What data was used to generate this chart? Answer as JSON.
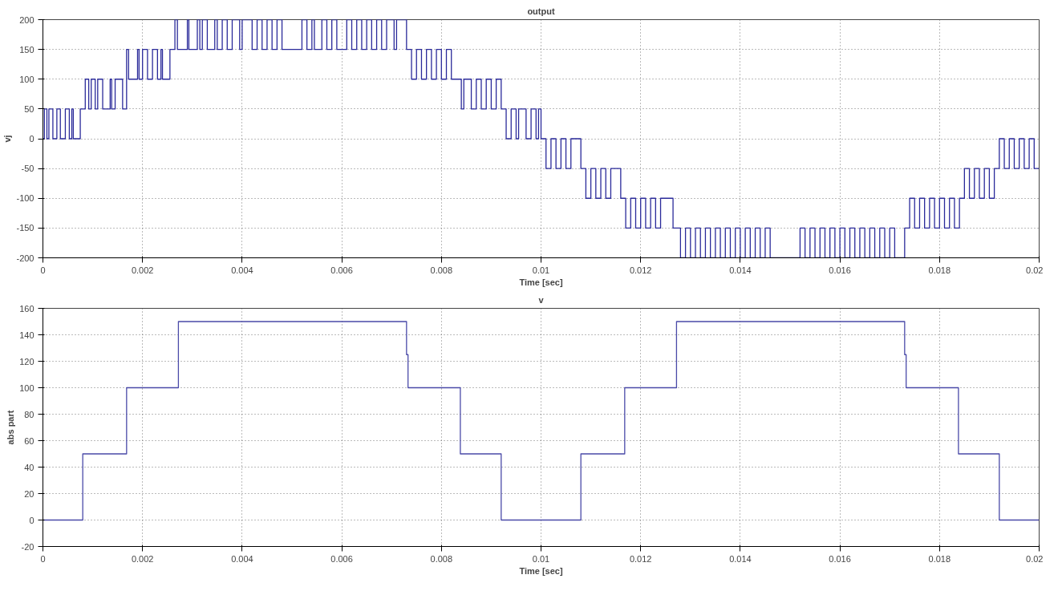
{
  "chart_data": [
    {
      "type": "step",
      "title": "output",
      "xlabel": "Time [sec]",
      "ylabel": "vj",
      "xlim": [
        0,
        0.02
      ],
      "ylim": [
        -200,
        200
      ],
      "xticks": [
        0,
        0.002,
        0.004,
        0.006,
        0.008,
        0.01,
        0.012,
        0.014,
        0.016,
        0.018,
        0.02
      ],
      "yticks": [
        -200,
        -150,
        -100,
        -50,
        0,
        50,
        100,
        150,
        200
      ],
      "grid": true,
      "line_style": "solid",
      "marker": "none",
      "series": [
        {
          "color": "#2a2a9a",
          "x": [
            0,
            3e-05,
            8e-05,
            0.00012,
            0.0002,
            0.00028,
            0.00035,
            0.00045,
            0.00053,
            0.00058,
            0.00061,
            0.00075,
            0.00085,
            0.00092,
            0.00097,
            0.00105,
            0.0011,
            0.0012,
            0.00135,
            0.00138,
            0.00145,
            0.0016,
            0.00168,
            0.00172,
            0.0019,
            0.00193,
            0.002,
            0.0021,
            0.0022,
            0.0023,
            0.00237,
            0.0024,
            0.00255,
            0.00265,
            0.0027,
            0.0029,
            0.00293,
            0.0031,
            0.00315,
            0.0032,
            0.0033,
            0.00345,
            0.0035,
            0.0036,
            0.0037,
            0.0038,
            0.00395,
            0.004,
            0.0042,
            0.0043,
            0.0044,
            0.0045,
            0.0046,
            0.0047,
            0.0048,
            0.0052,
            0.0053,
            0.0054,
            0.00545,
            0.0056,
            0.0057,
            0.0058,
            0.0059,
            0.0061,
            0.0062,
            0.0063,
            0.0064,
            0.0065,
            0.0066,
            0.0067,
            0.0068,
            0.0069,
            0.00705,
            0.0071,
            0.0073,
            0.0074,
            0.0075,
            0.0076,
            0.0077,
            0.0078,
            0.0079,
            0.008,
            0.0081,
            0.0082,
            0.0084,
            0.00845,
            0.0086,
            0.0087,
            0.0088,
            0.0089,
            0.009,
            0.0091,
            0.0092,
            0.0093,
            0.0094,
            0.0095,
            0.00955,
            0.0097,
            0.0098,
            0.0099,
            0.00995,
            0.01,
            0.0101,
            0.0102,
            0.0103,
            0.0104,
            0.0105,
            0.0106,
            0.0108,
            0.0109,
            0.011,
            0.0111,
            0.0112,
            0.0113,
            0.0114,
            0.0116,
            0.0117,
            0.0118,
            0.0119,
            0.012,
            0.0121,
            0.0122,
            0.0123,
            0.0124,
            0.01265,
            0.0128,
            0.0129,
            0.013,
            0.0131,
            0.0132,
            0.0133,
            0.0134,
            0.0135,
            0.0136,
            0.0137,
            0.0138,
            0.0139,
            0.014,
            0.0141,
            0.0142,
            0.0143,
            0.0144,
            0.0145,
            0.0146,
            0.0152,
            0.0153,
            0.0154,
            0.0155,
            0.0156,
            0.0157,
            0.0158,
            0.0159,
            0.016,
            0.0161,
            0.0162,
            0.0163,
            0.0164,
            0.0165,
            0.0166,
            0.0167,
            0.0168,
            0.0169,
            0.017,
            0.0171,
            0.0173,
            0.0174,
            0.0175,
            0.0176,
            0.0177,
            0.0178,
            0.0179,
            0.018,
            0.0181,
            0.0182,
            0.0183,
            0.0184,
            0.0185,
            0.0186,
            0.0187,
            0.0188,
            0.0189,
            0.019,
            0.0191,
            0.0192,
            0.0193,
            0.0194,
            0.0195,
            0.0196,
            0.0197,
            0.0198,
            0.0199,
            0.02
          ],
          "values": [
            0,
            50,
            0,
            50,
            0,
            50,
            0,
            50,
            0,
            50,
            0,
            50,
            100,
            50,
            100,
            50,
            100,
            50,
            100,
            50,
            100,
            50,
            150,
            100,
            150,
            100,
            150,
            100,
            150,
            100,
            150,
            100,
            150,
            200,
            150,
            200,
            150,
            200,
            150,
            200,
            150,
            200,
            150,
            200,
            150,
            200,
            150,
            200,
            150,
            200,
            150,
            200,
            150,
            200,
            150,
            200,
            150,
            200,
            150,
            200,
            150,
            200,
            150,
            200,
            150,
            200,
            150,
            200,
            150,
            200,
            150,
            200,
            150,
            200,
            150,
            100,
            150,
            100,
            150,
            100,
            150,
            100,
            150,
            100,
            50,
            100,
            50,
            100,
            50,
            100,
            50,
            100,
            50,
            0,
            50,
            0,
            50,
            0,
            50,
            0,
            50,
            0,
            -50,
            0,
            -50,
            0,
            -50,
            0,
            -50,
            -100,
            -50,
            -100,
            -50,
            -100,
            -50,
            -100,
            -150,
            -100,
            -150,
            -100,
            -150,
            -100,
            -150,
            -100,
            -150,
            -200,
            -150,
            -200,
            -150,
            -200,
            -150,
            -200,
            -150,
            -200,
            -150,
            -200,
            -150,
            -200,
            -150,
            -200,
            -150,
            -200,
            -150,
            -200,
            -150,
            -200,
            -150,
            -200,
            -150,
            -200,
            -150,
            -200,
            -150,
            -200,
            -150,
            -200,
            -150,
            -200,
            -150,
            -200,
            -150,
            -200,
            -150,
            -200,
            -150,
            -100,
            -150,
            -100,
            -150,
            -100,
            -150,
            -100,
            -150,
            -100,
            -150,
            -100,
            -50,
            -100,
            -50,
            -100,
            -50,
            -100,
            -50,
            0,
            -50,
            0,
            -50,
            0,
            -50,
            0,
            -50,
            -50
          ]
        }
      ]
    },
    {
      "type": "step",
      "title": "v",
      "xlabel": "Time [sec]",
      "ylabel": "abs part",
      "xlim": [
        0,
        0.02
      ],
      "ylim": [
        -20,
        160
      ],
      "xticks": [
        0,
        0.002,
        0.004,
        0.006,
        0.008,
        0.01,
        0.012,
        0.014,
        0.016,
        0.018,
        0.02
      ],
      "yticks": [
        -20,
        0,
        20,
        40,
        60,
        80,
        100,
        120,
        140,
        160
      ],
      "grid": true,
      "line_style": "solid",
      "marker": "none",
      "series": [
        {
          "color": "#4a4aa8",
          "x": [
            0,
            0.0008,
            0.00168,
            0.00272,
            0.0073,
            0.00733,
            0.00838,
            0.0092,
            0.0108,
            0.01168,
            0.01272,
            0.0173,
            0.01733,
            0.01838,
            0.0192,
            0.02
          ],
          "values": [
            0,
            50,
            100,
            150,
            125,
            100,
            50,
            0,
            50,
            100,
            150,
            125,
            100,
            50,
            0,
            0
          ]
        }
      ]
    }
  ]
}
